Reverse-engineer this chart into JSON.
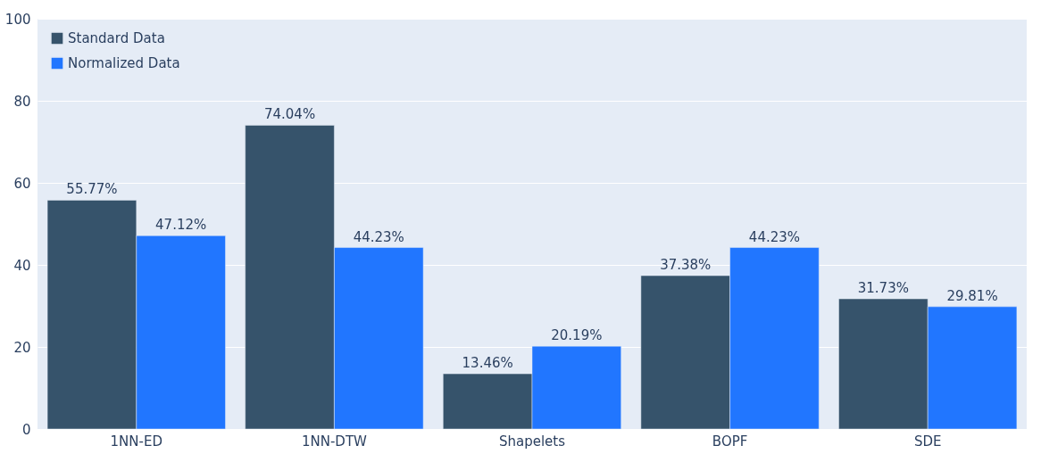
{
  "chart_data": {
    "type": "bar",
    "categories": [
      "1NN-ED",
      "1NN-DTW",
      "Shapelets",
      "BOPF",
      "SDE"
    ],
    "series": [
      {
        "name": "Standard Data",
        "color": "#36536b",
        "values": [
          55.77,
          74.04,
          13.46,
          37.38,
          31.73
        ],
        "value_labels": [
          "55.77%",
          "74.04%",
          "13.46%",
          "37.38%",
          "31.73%"
        ]
      },
      {
        "name": "Normalized Data",
        "color": "#2176ff",
        "values": [
          47.12,
          44.23,
          20.19,
          44.23,
          29.81
        ],
        "value_labels": [
          "47.12%",
          "44.23%",
          "20.19%",
          "44.23%",
          "29.81%"
        ]
      }
    ],
    "ylim": [
      0,
      100
    ],
    "yticks": [
      0,
      20,
      40,
      60,
      80,
      100
    ],
    "grid": "y",
    "legend": "top left"
  }
}
